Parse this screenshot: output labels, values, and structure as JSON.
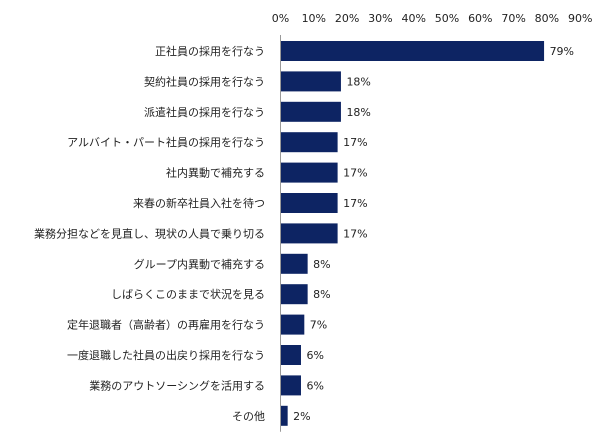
{
  "chart_data": {
    "type": "bar",
    "orientation": "horizontal",
    "categories": [
      "正社員の採用を行なう",
      "契約社員の採用を行なう",
      "派遣社員の採用を行なう",
      "アルバイト・パート社員の採用を行なう",
      "社内異動で補充する",
      "来春の新卒社員入社を待つ",
      "業務分担などを見直し、現状の人員で乗り切る",
      "グループ内異動で補充する",
      "しばらくこのままで状況を見る",
      "定年退職者（高齢者）の再雇用を行なう",
      "一度退職した社員の出戻り採用を行なう",
      "業務のアウトソーシングを活用する",
      "その他"
    ],
    "values": [
      79,
      18,
      18,
      17,
      17,
      17,
      17,
      8,
      8,
      7,
      6,
      6,
      2
    ],
    "value_labels": [
      "79%",
      "18%",
      "18%",
      "17%",
      "17%",
      "17%",
      "17%",
      "8%",
      "8%",
      "7%",
      "6%",
      "6%",
      "2%"
    ],
    "ticks": [
      0,
      10,
      20,
      30,
      40,
      50,
      60,
      70,
      80,
      90
    ],
    "tick_labels": [
      "0%",
      "10%",
      "20%",
      "30%",
      "40%",
      "50%",
      "60%",
      "70%",
      "80%",
      "90%"
    ],
    "xlim": [
      0,
      90
    ],
    "axis_position": "top",
    "grid": false,
    "legend": "none",
    "bar_color": "#0d2463",
    "axis_color": "#999999",
    "text_color": "#222222"
  }
}
